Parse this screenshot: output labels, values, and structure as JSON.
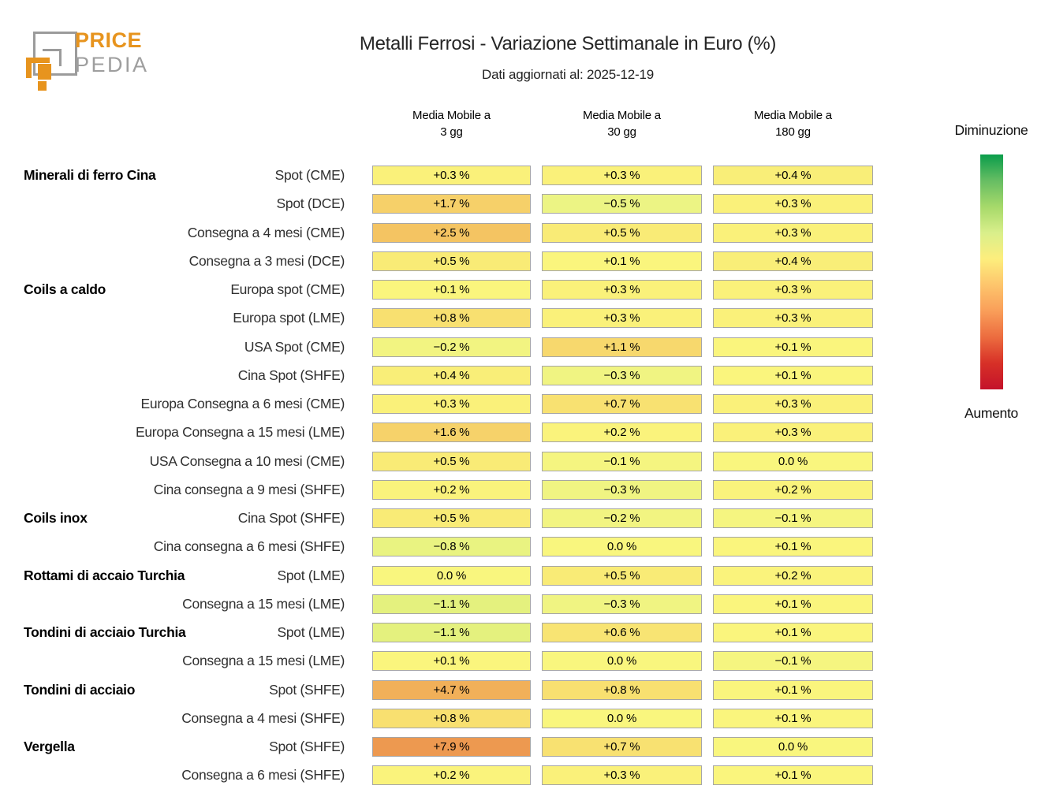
{
  "logo": {
    "price": "PRICE",
    "pedia": "PEDIA",
    "orange": "#e7941e",
    "gray": "#9e9e9e"
  },
  "chart_data": {
    "type": "heatmap",
    "title": "Metalli Ferrosi - Variazione Settimanale in Euro (%)",
    "subtitle": "Dati aggiornati al: 2025-12-19",
    "value_unit": "%",
    "columns": [
      {
        "top": "Media Mobile a",
        "bottom": "3 gg"
      },
      {
        "top": "Media Mobile a",
        "bottom": "30 gg"
      },
      {
        "top": "Media Mobile a",
        "bottom": "180 gg"
      }
    ],
    "legend": {
      "top_label": "Diminuzione",
      "bottom_label": "Aumento",
      "gradient": [
        "#0a9d4b",
        "#66bd63",
        "#a6d96a",
        "#d9ef8b",
        "#fdee7d",
        "#fdc56c",
        "#f99e59",
        "#ec6c3f",
        "#d73027",
        "#c4122a"
      ]
    },
    "rows": [
      {
        "group": "Minerali di ferro Cina",
        "label": "Spot (CME)",
        "values": [
          0.3,
          0.3,
          0.4
        ],
        "display": [
          "+0.3 %",
          "+0.3 %",
          "+0.4 %"
        ],
        "colors": [
          "#faf17a",
          "#faf17a",
          "#f9ee78"
        ]
      },
      {
        "group": "",
        "label": "Spot (DCE)",
        "values": [
          1.7,
          -0.5,
          0.3
        ],
        "display": [
          "+1.7 %",
          "−0.5 %",
          "+0.3 %"
        ],
        "colors": [
          "#f6d069",
          "#ecf484",
          "#faf17a"
        ]
      },
      {
        "group": "",
        "label": "Consegna a 4 mesi (CME)",
        "values": [
          2.5,
          0.5,
          0.3
        ],
        "display": [
          "+2.5 %",
          "+0.5 %",
          "+0.3 %"
        ],
        "colors": [
          "#f4c462",
          "#f9eb76",
          "#faf17a"
        ]
      },
      {
        "group": "",
        "label": "Consegna a 3 mesi (DCE)",
        "values": [
          0.5,
          0.1,
          0.4
        ],
        "display": [
          "+0.5 %",
          "+0.1 %",
          "+0.4 %"
        ],
        "colors": [
          "#f9eb76",
          "#faf57d",
          "#f9ee78"
        ]
      },
      {
        "group": "Coils a caldo",
        "label": "Europa spot (CME)",
        "values": [
          0.1,
          0.3,
          0.3
        ],
        "display": [
          "+0.1 %",
          "+0.3 %",
          "+0.3 %"
        ],
        "colors": [
          "#faf57d",
          "#faf17a",
          "#faf17a"
        ]
      },
      {
        "group": "",
        "label": "Europa spot (LME)",
        "values": [
          0.8,
          0.3,
          0.3
        ],
        "display": [
          "+0.8 %",
          "+0.3 %",
          "+0.3 %"
        ],
        "colors": [
          "#f8e070",
          "#faf17a",
          "#faf17a"
        ]
      },
      {
        "group": "",
        "label": "USA Spot (CME)",
        "values": [
          -0.2,
          1.1,
          0.1
        ],
        "display": [
          "−0.2 %",
          "+1.1 %",
          "+0.1 %"
        ],
        "colors": [
          "#f2f481",
          "#f7d86d",
          "#faf57d"
        ]
      },
      {
        "group": "",
        "label": "Cina Spot (SHFE)",
        "values": [
          0.4,
          -0.3,
          0.1
        ],
        "display": [
          "+0.4 %",
          "−0.3 %",
          "+0.1 %"
        ],
        "colors": [
          "#f9ee78",
          "#f0f482",
          "#faf57d"
        ]
      },
      {
        "group": "",
        "label": "Europa Consegna a 6 mesi (CME)",
        "values": [
          0.3,
          0.7,
          0.3
        ],
        "display": [
          "+0.3 %",
          "+0.7 %",
          "+0.3 %"
        ],
        "colors": [
          "#faf17a",
          "#f8e171",
          "#faf17a"
        ]
      },
      {
        "group": "",
        "label": "Europa Consegna a 15 mesi (LME)",
        "values": [
          1.6,
          0.2,
          0.3
        ],
        "display": [
          "+1.6 %",
          "+0.2 %",
          "+0.3 %"
        ],
        "colors": [
          "#f6d26a",
          "#faf37c",
          "#faf17a"
        ]
      },
      {
        "group": "",
        "label": "USA Consegna a 10 mesi (CME)",
        "values": [
          0.5,
          -0.1,
          0.0
        ],
        "display": [
          "+0.5 %",
          "−0.1 %",
          "0.0 %"
        ],
        "colors": [
          "#f9eb76",
          "#f5f580",
          "#f9f67e"
        ]
      },
      {
        "group": "",
        "label": "Cina consegna a 9 mesi (SHFE)",
        "values": [
          0.2,
          -0.3,
          0.2
        ],
        "display": [
          "+0.2 %",
          "−0.3 %",
          "+0.2 %"
        ],
        "colors": [
          "#faf37c",
          "#f0f482",
          "#faf37c"
        ]
      },
      {
        "group": "Coils inox",
        "label": "Cina Spot (SHFE)",
        "values": [
          0.5,
          -0.2,
          -0.1
        ],
        "display": [
          "+0.5 %",
          "−0.2 %",
          "−0.1 %"
        ],
        "colors": [
          "#f9eb76",
          "#f2f481",
          "#f5f580"
        ]
      },
      {
        "group": "",
        "label": "Cina consegna a 6 mesi (SHFE)",
        "values": [
          -0.8,
          0.0,
          0.1
        ],
        "display": [
          "−0.8 %",
          "0.0 %",
          "+0.1 %"
        ],
        "colors": [
          "#e9f381",
          "#f9f67e",
          "#faf57d"
        ]
      },
      {
        "group": "Rottami di accaio Turchia",
        "label": "Spot (LME)",
        "values": [
          0.0,
          0.5,
          0.2
        ],
        "display": [
          "0.0 %",
          "+0.5 %",
          "+0.2 %"
        ],
        "colors": [
          "#f9f67e",
          "#f9eb76",
          "#faf37c"
        ]
      },
      {
        "group": "",
        "label": "Consegna a 15 mesi (LME)",
        "values": [
          -1.1,
          -0.3,
          0.1
        ],
        "display": [
          "−1.1 %",
          "−0.3 %",
          "+0.1 %"
        ],
        "colors": [
          "#e4f17e",
          "#f0f482",
          "#faf57d"
        ]
      },
      {
        "group": "Tondini di acciaio Turchia",
        "label": "Spot (LME)",
        "values": [
          -1.1,
          0.6,
          0.1
        ],
        "display": [
          "−1.1 %",
          "+0.6 %",
          "+0.1 %"
        ],
        "colors": [
          "#e4f17e",
          "#f8e473",
          "#faf57d"
        ]
      },
      {
        "group": "",
        "label": "Consegna a 15 mesi (LME)",
        "values": [
          0.1,
          0.0,
          -0.1
        ],
        "display": [
          "+0.1 %",
          "0.0 %",
          "−0.1 %"
        ],
        "colors": [
          "#faf57d",
          "#f9f67e",
          "#f5f580"
        ]
      },
      {
        "group": "Tondini di acciaio",
        "label": "Spot (SHFE)",
        "values": [
          4.7,
          0.8,
          0.1
        ],
        "display": [
          "+4.7 %",
          "+0.8 %",
          "+0.1 %"
        ],
        "colors": [
          "#f1b059",
          "#f8e070",
          "#faf57d"
        ]
      },
      {
        "group": "",
        "label": "Consegna a 4 mesi (SHFE)",
        "values": [
          0.8,
          0.0,
          0.1
        ],
        "display": [
          "+0.8 %",
          "0.0 %",
          "+0.1 %"
        ],
        "colors": [
          "#f8e070",
          "#f9f67e",
          "#faf57d"
        ]
      },
      {
        "group": "Vergella",
        "label": "Spot (SHFE)",
        "values": [
          7.9,
          0.7,
          0.0
        ],
        "display": [
          "+7.9 %",
          "+0.7 %",
          "0.0 %"
        ],
        "colors": [
          "#ed9950",
          "#f8e171",
          "#f9f67e"
        ]
      },
      {
        "group": "",
        "label": "Consegna a 6 mesi (SHFE)",
        "values": [
          0.2,
          0.3,
          0.1
        ],
        "display": [
          "+0.2 %",
          "+0.3 %",
          "+0.1 %"
        ],
        "colors": [
          "#faf37c",
          "#faf17a",
          "#faf57d"
        ]
      }
    ]
  }
}
